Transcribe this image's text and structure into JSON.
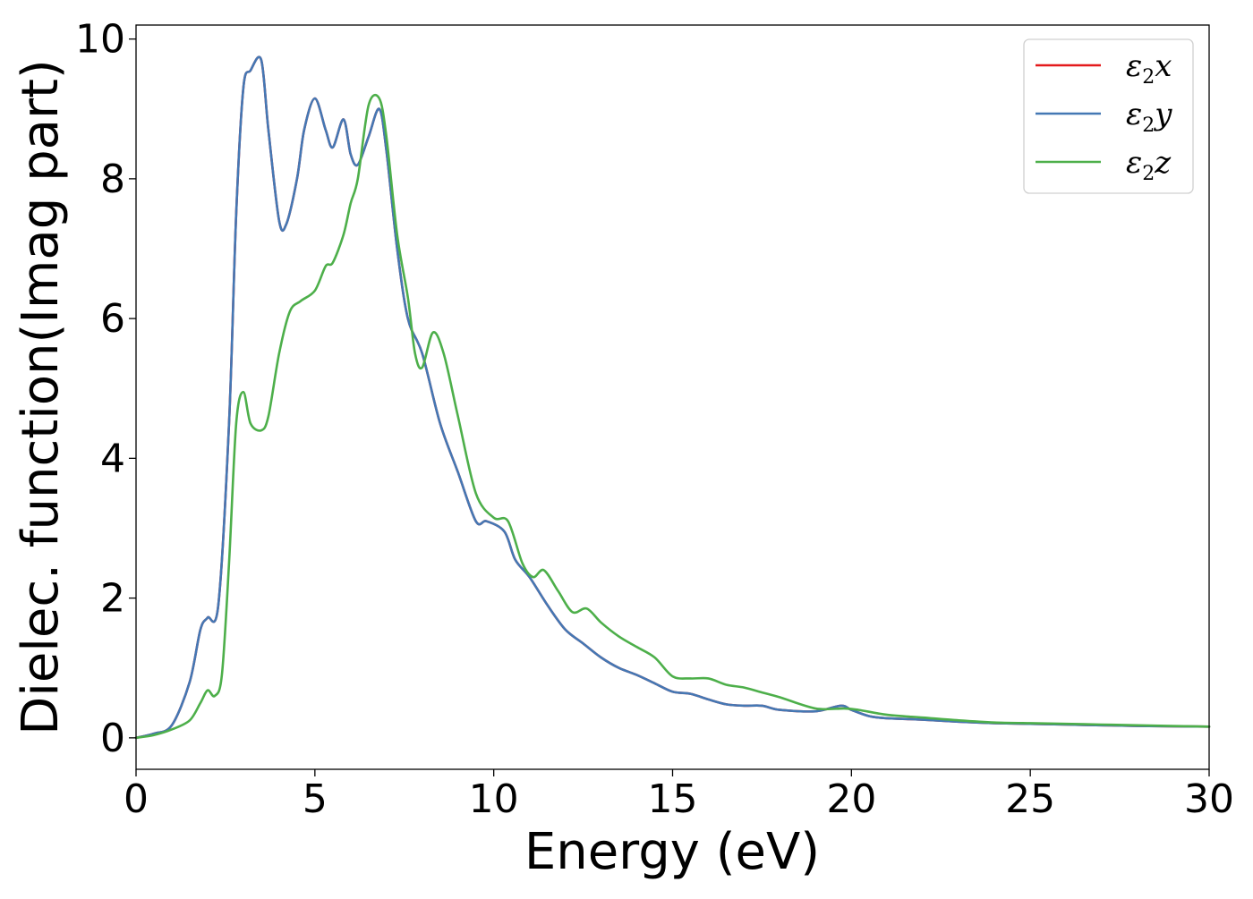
{
  "chart_data": {
    "type": "line",
    "title": "",
    "xlabel": "Energy (eV)",
    "ylabel": "Dielec. function(Imag part)",
    "xlim": [
      0,
      30
    ],
    "ylim": [
      -0.45,
      10.2
    ],
    "xticks": [
      0,
      5,
      10,
      15,
      20,
      25,
      30
    ],
    "yticks": [
      0,
      2,
      4,
      6,
      8,
      10
    ],
    "grid": false,
    "legend_position": "top-right",
    "series": [
      {
        "name": "ε₂x",
        "legend_base": "ε",
        "legend_sub": "2",
        "legend_var": "x",
        "color": "#e41a1c",
        "x": [
          0,
          0.5,
          1.0,
          1.5,
          1.8,
          2.0,
          2.3,
          2.6,
          2.8,
          3.0,
          3.2,
          3.5,
          3.7,
          4.0,
          4.2,
          4.5,
          4.7,
          5.0,
          5.3,
          5.5,
          5.8,
          6.0,
          6.2,
          6.5,
          6.8,
          7.0,
          7.3,
          7.6,
          8.0,
          8.5,
          9.0,
          9.5,
          9.8,
          10.3,
          10.6,
          11.0,
          11.5,
          12.0,
          12.5,
          13.0,
          13.5,
          14.0,
          14.5,
          15.0,
          15.5,
          16.0,
          16.5,
          17.0,
          17.5,
          18.0,
          19.0,
          19.7,
          20.0,
          20.5,
          21.0,
          22.0,
          23.0,
          24.0,
          25.0,
          26.0,
          27.0,
          28.0,
          30.0
        ],
        "values": [
          0,
          0.06,
          0.18,
          0.8,
          1.55,
          1.72,
          1.9,
          4.5,
          7.5,
          9.3,
          9.55,
          9.7,
          8.7,
          7.4,
          7.35,
          8.0,
          8.7,
          9.15,
          8.7,
          8.45,
          8.85,
          8.35,
          8.2,
          8.6,
          9.0,
          8.4,
          7.0,
          6.0,
          5.5,
          4.5,
          3.8,
          3.1,
          3.1,
          2.95,
          2.55,
          2.3,
          1.9,
          1.55,
          1.35,
          1.15,
          1.0,
          0.9,
          0.78,
          0.66,
          0.63,
          0.55,
          0.48,
          0.46,
          0.46,
          0.4,
          0.38,
          0.46,
          0.4,
          0.31,
          0.28,
          0.26,
          0.23,
          0.21,
          0.2,
          0.19,
          0.18,
          0.17,
          0.16
        ]
      },
      {
        "name": "ε₂y",
        "legend_base": "ε",
        "legend_sub": "2",
        "legend_var": "y",
        "color": "#4478b4",
        "x": [
          0,
          0.5,
          1.0,
          1.5,
          1.8,
          2.0,
          2.3,
          2.6,
          2.8,
          3.0,
          3.2,
          3.5,
          3.7,
          4.0,
          4.2,
          4.5,
          4.7,
          5.0,
          5.3,
          5.5,
          5.8,
          6.0,
          6.2,
          6.5,
          6.8,
          7.0,
          7.3,
          7.6,
          8.0,
          8.5,
          9.0,
          9.5,
          9.8,
          10.3,
          10.6,
          11.0,
          11.5,
          12.0,
          12.5,
          13.0,
          13.5,
          14.0,
          14.5,
          15.0,
          15.5,
          16.0,
          16.5,
          17.0,
          17.5,
          18.0,
          19.0,
          19.7,
          20.0,
          20.5,
          21.0,
          22.0,
          23.0,
          24.0,
          25.0,
          26.0,
          27.0,
          28.0,
          30.0
        ],
        "values": [
          0,
          0.06,
          0.18,
          0.8,
          1.55,
          1.72,
          1.9,
          4.5,
          7.5,
          9.3,
          9.55,
          9.7,
          8.7,
          7.4,
          7.35,
          8.0,
          8.7,
          9.15,
          8.7,
          8.45,
          8.85,
          8.35,
          8.2,
          8.6,
          9.0,
          8.4,
          7.0,
          6.0,
          5.5,
          4.5,
          3.8,
          3.1,
          3.1,
          2.95,
          2.55,
          2.3,
          1.9,
          1.55,
          1.35,
          1.15,
          1.0,
          0.9,
          0.78,
          0.66,
          0.63,
          0.55,
          0.48,
          0.46,
          0.46,
          0.4,
          0.38,
          0.46,
          0.4,
          0.31,
          0.28,
          0.26,
          0.23,
          0.21,
          0.2,
          0.19,
          0.18,
          0.17,
          0.16
        ]
      },
      {
        "name": "ε₂z",
        "legend_base": "ε",
        "legend_sub": "2",
        "legend_var": "z",
        "color": "#4daf4a",
        "x": [
          0,
          0.5,
          1.0,
          1.5,
          1.8,
          2.0,
          2.2,
          2.4,
          2.6,
          2.8,
          3.0,
          3.2,
          3.5,
          3.7,
          4.0,
          4.3,
          4.6,
          5.0,
          5.3,
          5.5,
          5.8,
          6.0,
          6.2,
          6.5,
          6.8,
          7.0,
          7.3,
          7.6,
          7.8,
          8.0,
          8.3,
          8.6,
          9.0,
          9.5,
          10.0,
          10.4,
          10.8,
          11.1,
          11.4,
          11.8,
          12.2,
          12.6,
          13.0,
          13.5,
          14.0,
          14.5,
          15.0,
          15.5,
          16.0,
          16.5,
          17.0,
          17.5,
          18.0,
          19.0,
          19.8,
          20.2,
          21.0,
          22.0,
          23.0,
          24.0,
          25.0,
          26.0,
          27.0,
          28.0,
          30.0
        ],
        "values": [
          0,
          0.04,
          0.12,
          0.25,
          0.5,
          0.68,
          0.6,
          0.9,
          2.5,
          4.5,
          4.95,
          4.5,
          4.4,
          4.6,
          5.5,
          6.1,
          6.25,
          6.4,
          6.75,
          6.8,
          7.2,
          7.65,
          8.0,
          9.05,
          9.15,
          8.6,
          7.2,
          6.3,
          5.5,
          5.3,
          5.8,
          5.5,
          4.6,
          3.5,
          3.15,
          3.1,
          2.5,
          2.3,
          2.4,
          2.1,
          1.8,
          1.85,
          1.65,
          1.45,
          1.3,
          1.15,
          0.88,
          0.85,
          0.85,
          0.76,
          0.72,
          0.65,
          0.58,
          0.42,
          0.42,
          0.4,
          0.33,
          0.29,
          0.25,
          0.22,
          0.21,
          0.2,
          0.19,
          0.18,
          0.16
        ]
      }
    ]
  }
}
